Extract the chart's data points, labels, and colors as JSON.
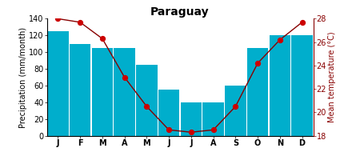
{
  "title": "Paraguay",
  "months": [
    "J",
    "F",
    "M",
    "A",
    "M",
    "J",
    "J",
    "A",
    "S",
    "O",
    "N",
    "D"
  ],
  "precipitation": [
    125,
    110,
    105,
    105,
    85,
    55,
    40,
    40,
    60,
    105,
    120,
    120
  ],
  "temperature": [
    28.0,
    27.7,
    26.3,
    23.0,
    20.5,
    18.5,
    18.3,
    18.5,
    20.5,
    24.2,
    26.2,
    27.7
  ],
  "bar_color": "#00AECC",
  "line_color": "#880000",
  "dot_color": "#CC0000",
  "ylabel_left": "Precipitation (mm/month)",
  "ylabel_right": "Mean temperature (°C)",
  "ylim_left": [
    0,
    140
  ],
  "ylim_right": [
    18,
    28
  ],
  "yticks_left": [
    0,
    20,
    40,
    60,
    80,
    100,
    120,
    140
  ],
  "yticks_right": [
    18,
    20,
    22,
    24,
    26,
    28
  ],
  "background_color": "white",
  "title_fontsize": 10,
  "axis_fontsize": 7,
  "label_fontsize": 7
}
